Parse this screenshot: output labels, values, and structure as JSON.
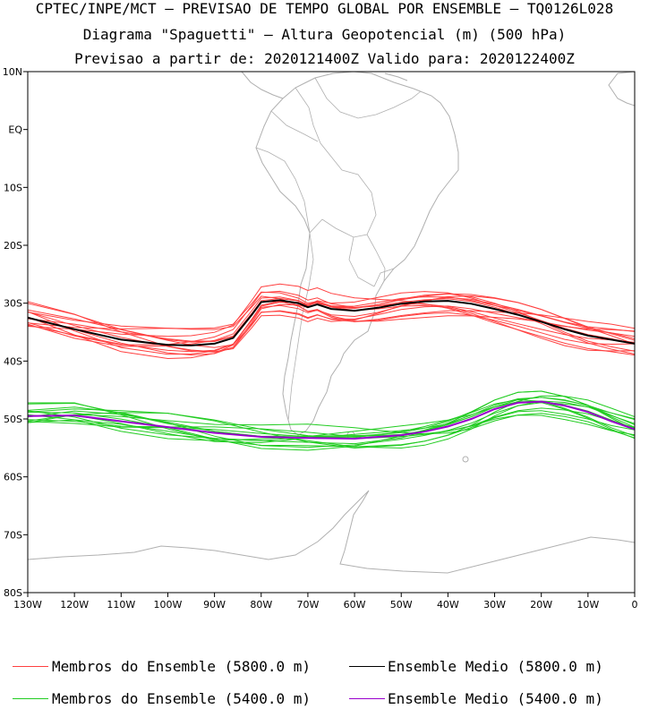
{
  "header": {
    "line1": "CPTEC/INPE/MCT – PREVISAO DE TEMPO GLOBAL POR ENSEMBLE – TQ0126L028",
    "line2": "Diagrama \"Spaguetti\" – Altura Geopotencial (m) (500 hPa)",
    "line3": "Previsao a partir de: 2020121400Z  Valido para: 2020122400Z"
  },
  "map": {
    "lon_range": [
      -130,
      0
    ],
    "lat_range": [
      -80,
      10
    ],
    "lon_ticks": [
      "130W",
      "120W",
      "110W",
      "100W",
      "90W",
      "80W",
      "70W",
      "60W",
      "50W",
      "40W",
      "30W",
      "20W",
      "10W",
      "0"
    ],
    "lat_ticks": [
      "10N",
      "EQ",
      "10S",
      "20S",
      "30S",
      "40S",
      "50S",
      "60S",
      "70S",
      "80S"
    ],
    "land_color": "#b0b0b0"
  },
  "legend": {
    "item1": "Membros do Ensemble (5800.0 m)",
    "item2": "Ensemble Medio (5800.0 m)",
    "item3": "Membros do Ensemble (5400.0 m)",
    "item4": "Ensemble Medio (5400.0 m)"
  },
  "colors": {
    "members_5800": "#ff4040",
    "mean_5800": "#000000",
    "members_5400": "#22cc22",
    "mean_5400": "#9900cc"
  },
  "chart_data": {
    "type": "line",
    "series": [
      {
        "name": "Ensemble Medio (5800.0 m)",
        "x": [
          -130,
          -120,
          -110,
          -100,
          -95,
          -90,
          -86,
          -82,
          -80,
          -76,
          -72,
          -70,
          -68,
          -65,
          -60,
          -55,
          -50,
          -45,
          -40,
          -35,
          -30,
          -25,
          -20,
          -15,
          -10,
          -5,
          0
        ],
        "y": [
          -32.5,
          -34.5,
          -36.3,
          -37.2,
          -37.3,
          -37,
          -36,
          -32,
          -29.8,
          -29.5,
          -30,
          -30.7,
          -30.2,
          -31,
          -31.3,
          -30.8,
          -30.1,
          -29.7,
          -29.6,
          -30.1,
          -31,
          -32,
          -33.2,
          -34.5,
          -35.6,
          -36.3,
          -37
        ]
      },
      {
        "name": "Ensemble Medio (5400.0 m)",
        "x": [
          -130,
          -120,
          -110,
          -100,
          -90,
          -80,
          -70,
          -60,
          -50,
          -45,
          -40,
          -35,
          -30,
          -25,
          -20,
          -15,
          -10,
          -5,
          0
        ],
        "y": [
          -49.5,
          -49.4,
          -50.4,
          -51.4,
          -52.4,
          -53.1,
          -53.3,
          -53.4,
          -52.8,
          -52.2,
          -51.3,
          -50,
          -48.3,
          -47.2,
          -47,
          -47.7,
          -48.8,
          -50.4,
          -51.8
        ]
      }
    ]
  }
}
